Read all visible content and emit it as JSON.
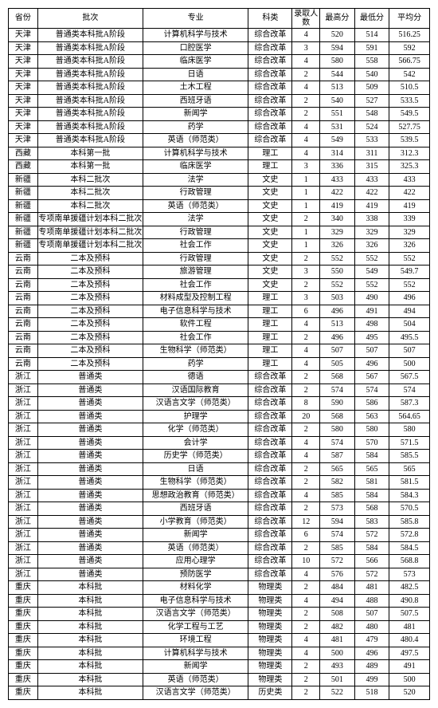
{
  "columns": [
    "省份",
    "批次",
    "专业",
    "科类",
    "录取人数",
    "最高分",
    "最低分",
    "平均分"
  ],
  "rows": [
    [
      "天津",
      "普通类本科批A阶段",
      "计算机科学与技术",
      "综合改革",
      "4",
      "520",
      "514",
      "516.25"
    ],
    [
      "天津",
      "普通类本科批A阶段",
      "口腔医学",
      "综合改革",
      "3",
      "594",
      "591",
      "592"
    ],
    [
      "天津",
      "普通类本科批A阶段",
      "临床医学",
      "综合改革",
      "4",
      "580",
      "558",
      "566.75"
    ],
    [
      "天津",
      "普通类本科批A阶段",
      "日语",
      "综合改革",
      "2",
      "544",
      "540",
      "542"
    ],
    [
      "天津",
      "普通类本科批A阶段",
      "土木工程",
      "综合改革",
      "4",
      "513",
      "509",
      "510.5"
    ],
    [
      "天津",
      "普通类本科批A阶段",
      "西班牙语",
      "综合改革",
      "2",
      "540",
      "527",
      "533.5"
    ],
    [
      "天津",
      "普通类本科批A阶段",
      "新闻学",
      "综合改革",
      "2",
      "551",
      "548",
      "549.5"
    ],
    [
      "天津",
      "普通类本科批A阶段",
      "药学",
      "综合改革",
      "4",
      "531",
      "524",
      "527.75"
    ],
    [
      "天津",
      "普通类本科批A阶段",
      "英语（师范类）",
      "综合改革",
      "4",
      "549",
      "533",
      "539.5"
    ],
    [
      "西藏",
      "本科第一批",
      "计算机科学与技术",
      "理工",
      "4",
      "314",
      "311",
      "312.3"
    ],
    [
      "西藏",
      "本科第一批",
      "临床医学",
      "理工",
      "3",
      "336",
      "315",
      "325.3"
    ],
    [
      "新疆",
      "本科二批次",
      "法学",
      "文史",
      "1",
      "433",
      "433",
      "433"
    ],
    [
      "新疆",
      "本科二批次",
      "行政管理",
      "文史",
      "1",
      "422",
      "422",
      "422"
    ],
    [
      "新疆",
      "本科二批次",
      "英语（师范类）",
      "文史",
      "1",
      "419",
      "419",
      "419"
    ],
    [
      "新疆",
      "专项南单援疆计划本科二批次",
      "法学",
      "文史",
      "2",
      "340",
      "338",
      "339"
    ],
    [
      "新疆",
      "专项南单援疆计划本科二批次",
      "行政管理",
      "文史",
      "1",
      "329",
      "329",
      "329"
    ],
    [
      "新疆",
      "专项南单援疆计划本科二批次",
      "社会工作",
      "文史",
      "1",
      "326",
      "326",
      "326"
    ],
    [
      "云南",
      "二本及预科",
      "行政管理",
      "文史",
      "2",
      "552",
      "552",
      "552"
    ],
    [
      "云南",
      "二本及预科",
      "旅游管理",
      "文史",
      "3",
      "550",
      "549",
      "549.7"
    ],
    [
      "云南",
      "二本及预科",
      "社会工作",
      "文史",
      "2",
      "552",
      "552",
      "552"
    ],
    [
      "云南",
      "二本及预科",
      "材料成型及控制工程",
      "理工",
      "3",
      "503",
      "490",
      "496"
    ],
    [
      "云南",
      "二本及预科",
      "电子信息科学与技术",
      "理工",
      "6",
      "496",
      "491",
      "494"
    ],
    [
      "云南",
      "二本及预科",
      "软件工程",
      "理工",
      "4",
      "513",
      "498",
      "504"
    ],
    [
      "云南",
      "二本及预科",
      "社会工作",
      "理工",
      "2",
      "496",
      "495",
      "495.5"
    ],
    [
      "云南",
      "二本及预科",
      "生物科学（师范类）",
      "理工",
      "4",
      "507",
      "507",
      "507"
    ],
    [
      "云南",
      "二本及预科",
      "药学",
      "理工",
      "4",
      "505",
      "496",
      "500"
    ],
    [
      "浙江",
      "普通类",
      "德语",
      "综合改革",
      "2",
      "568",
      "567",
      "567.5"
    ],
    [
      "浙江",
      "普通类",
      "汉语国际教育",
      "综合改革",
      "2",
      "574",
      "574",
      "574"
    ],
    [
      "浙江",
      "普通类",
      "汉语言文学（师范类）",
      "综合改革",
      "8",
      "590",
      "586",
      "587.3"
    ],
    [
      "浙江",
      "普通类",
      "护理学",
      "综合改革",
      "20",
      "568",
      "563",
      "564.65"
    ],
    [
      "浙江",
      "普通类",
      "化学（师范类）",
      "综合改革",
      "2",
      "580",
      "580",
      "580"
    ],
    [
      "浙江",
      "普通类",
      "会计学",
      "综合改革",
      "4",
      "574",
      "570",
      "571.5"
    ],
    [
      "浙江",
      "普通类",
      "历史学（师范类）",
      "综合改革",
      "4",
      "587",
      "584",
      "585.5"
    ],
    [
      "浙江",
      "普通类",
      "日语",
      "综合改革",
      "2",
      "565",
      "565",
      "565"
    ],
    [
      "浙江",
      "普通类",
      "生物科学（师范类）",
      "综合改革",
      "2",
      "582",
      "581",
      "581.5"
    ],
    [
      "浙江",
      "普通类",
      "思想政治教育（师范类）",
      "综合改革",
      "4",
      "585",
      "584",
      "584.3"
    ],
    [
      "浙江",
      "普通类",
      "西班牙语",
      "综合改革",
      "2",
      "573",
      "568",
      "570.5"
    ],
    [
      "浙江",
      "普通类",
      "小学教育（师范类）",
      "综合改革",
      "12",
      "594",
      "583",
      "585.8"
    ],
    [
      "浙江",
      "普通类",
      "新闻学",
      "综合改革",
      "6",
      "574",
      "572",
      "572.8"
    ],
    [
      "浙江",
      "普通类",
      "英语（师范类）",
      "综合改革",
      "2",
      "585",
      "584",
      "584.5"
    ],
    [
      "浙江",
      "普通类",
      "应用心理学",
      "综合改革",
      "10",
      "572",
      "566",
      "568.8"
    ],
    [
      "浙江",
      "普通类",
      "预防医学",
      "综合改革",
      "4",
      "576",
      "572",
      "573"
    ],
    [
      "重庆",
      "本科批",
      "材料化学",
      "物理类",
      "2",
      "484",
      "481",
      "482.5"
    ],
    [
      "重庆",
      "本科批",
      "电子信息科学与技术",
      "物理类",
      "4",
      "494",
      "488",
      "490.8"
    ],
    [
      "重庆",
      "本科批",
      "汉语言文学（师范类）",
      "物理类",
      "2",
      "508",
      "507",
      "507.5"
    ],
    [
      "重庆",
      "本科批",
      "化学工程与工艺",
      "物理类",
      "2",
      "482",
      "480",
      "481"
    ],
    [
      "重庆",
      "本科批",
      "环境工程",
      "物理类",
      "4",
      "481",
      "479",
      "480.4"
    ],
    [
      "重庆",
      "本科批",
      "计算机科学与技术",
      "物理类",
      "4",
      "500",
      "496",
      "497.5"
    ],
    [
      "重庆",
      "本科批",
      "新闻学",
      "物理类",
      "2",
      "493",
      "489",
      "491"
    ],
    [
      "重庆",
      "本科批",
      "英语（师范类）",
      "物理类",
      "2",
      "501",
      "499",
      "500"
    ],
    [
      "重庆",
      "本科批",
      "汉语言文学（师范类）",
      "历史类",
      "2",
      "522",
      "518",
      "520"
    ]
  ]
}
